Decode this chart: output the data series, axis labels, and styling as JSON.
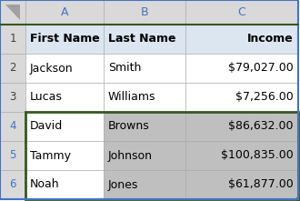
{
  "col_letters": [
    "A",
    "B",
    "C"
  ],
  "row_numbers": [
    "1",
    "2",
    "3",
    "4",
    "5",
    "6"
  ],
  "headers": [
    "First Name",
    "Last Name",
    "Income"
  ],
  "rows": [
    [
      "Jackson",
      "Smith",
      "$79,027.00"
    ],
    [
      "Lucas",
      "Williams",
      "$7,256.00"
    ],
    [
      "David",
      "Browns",
      "$86,632.00"
    ],
    [
      "Tammy",
      "Johnson",
      "$100,835.00"
    ],
    [
      "Noah",
      "Jones",
      "$61,877.00"
    ]
  ],
  "header_bg": "#dce6f1",
  "header_fg": "#000000",
  "col_header_bg": "#d9d9d9",
  "selected_bg": "#bfbfbf",
  "selected_a_bg": "#ffffff",
  "unselected_bg": "#ffffff",
  "row_num_bg": "#d9d9d9",
  "row_num_selected_bg": "#d9d9d9",
  "col_letter_fg": "#4472c4",
  "grid_color": "#a6a6a6",
  "selection_border_color": "#375623",
  "outer_border_color": "#4472c4",
  "corner_bg": "#d9d9d9"
}
